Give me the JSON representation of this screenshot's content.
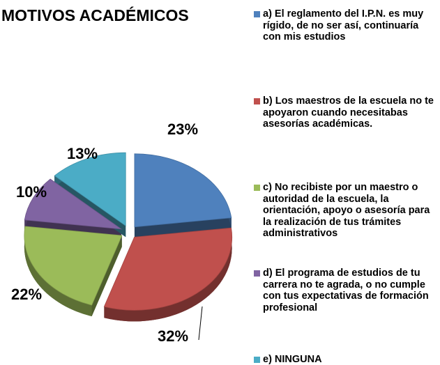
{
  "chart_data": {
    "type": "pie",
    "title": "MOTIVOS ACADÉMICOS",
    "categories": [
      "a) El reglamento del I.P.N. es muy rígido, de no ser así, continuaría con mis estudios",
      "b) Los maestros de la escuela no te apoyaron cuando necesitabas asesorías académicas.",
      "c) No recibiste por un maestro o autoridad de la escuela, la orientación, apoyo o asesoría para la realización de tus trámites administrativos",
      "d) El programa de estudios de tu carrera no te agrada, o no cumple con tus expectativas de formación profesional",
      "e) NINGUNA"
    ],
    "values": [
      23,
      32,
      22,
      10,
      13
    ],
    "value_labels": [
      "23%",
      "32%",
      "22%",
      "10%",
      "13%"
    ],
    "colors": [
      "#4f81bd",
      "#c0504d",
      "#9bbb59",
      "#8064a2",
      "#4bacc6"
    ],
    "legend": "right"
  }
}
